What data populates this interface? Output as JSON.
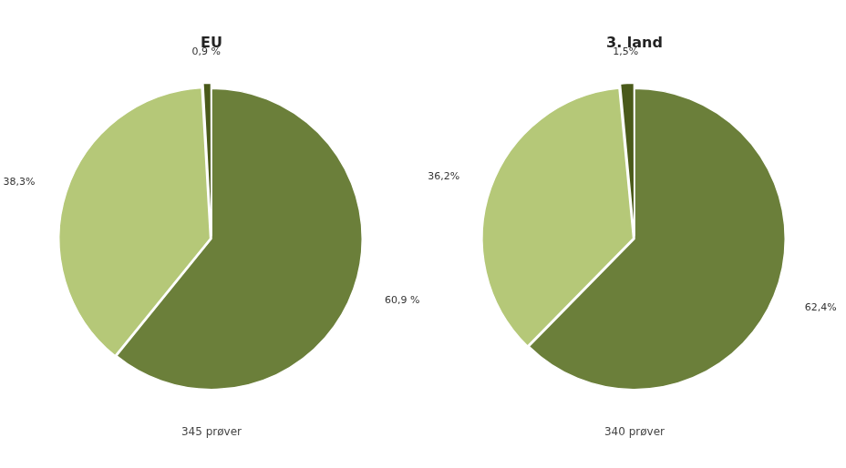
{
  "chart_data": [
    {
      "type": "pie",
      "title": "EU",
      "subtitle": "345 prøver",
      "values": [
        60.9,
        38.3,
        0.9
      ],
      "value_labels": [
        "60,9 %",
        "38,3%",
        "0,9 %"
      ],
      "colors": [
        "#6b7f3a",
        "#b5c878",
        "#4a5a1a"
      ],
      "data_labels": true
    },
    {
      "type": "pie",
      "title": "3. land",
      "subtitle": "340 prøver",
      "values": [
        62.4,
        36.2,
        1.5
      ],
      "value_labels": [
        "62,4%",
        "36,2%",
        "1,5%"
      ],
      "colors": [
        "#6b7f3a",
        "#b5c878",
        "#4a5a1a"
      ],
      "data_labels": true
    }
  ]
}
